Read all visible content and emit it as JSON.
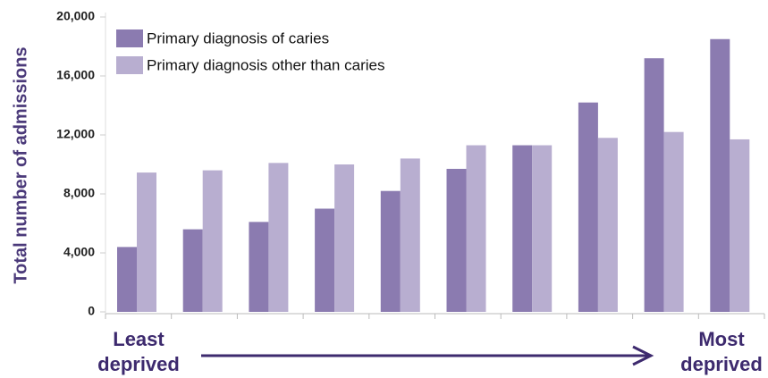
{
  "chart_data": {
    "type": "bar",
    "y_label": "Total number of admissions",
    "categories": [
      null,
      null,
      null,
      null,
      null,
      null,
      null,
      null,
      null,
      null
    ],
    "series": [
      {
        "name": "Primary diagnosis of caries",
        "color": "#8b7bb0",
        "values": [
          4400,
          5600,
          6100,
          7000,
          8200,
          9700,
          11300,
          14200,
          17200,
          18500
        ]
      },
      {
        "name": "Primary diagnosis other than caries",
        "color": "#b8aed0",
        "values": [
          9450,
          9600,
          10100,
          10000,
          10400,
          11300,
          11300,
          11800,
          12200,
          11700
        ]
      }
    ],
    "ylim": [
      0,
      20000
    ],
    "yticks": [
      0,
      {
        "value": 4000,
        "label": "4,000"
      },
      {
        "value": 8000,
        "label": "8,000"
      },
      {
        "value": 12000,
        "label": "12,000"
      },
      {
        "value": 16000,
        "label": "16,000"
      },
      {
        "value": 20000,
        "label": "20,000"
      }
    ],
    "grid": false,
    "legend": "upper left",
    "annotations": [
      "Least deprived",
      "Most deprived"
    ]
  }
}
